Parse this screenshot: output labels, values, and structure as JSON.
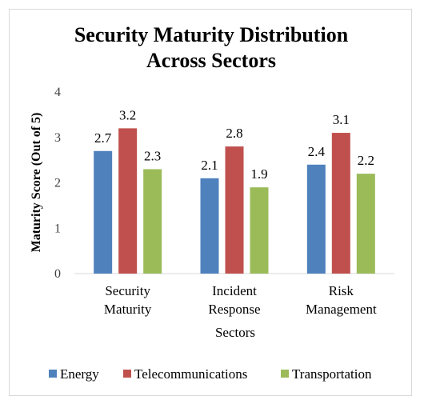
{
  "chart_data": {
    "type": "bar",
    "title_lines": [
      "Security Maturity Distribution",
      "Across Sectors"
    ],
    "xlabel": "Sectors",
    "ylabel": "Maturity Score (Out of 5)",
    "ylim": [
      0,
      4
    ],
    "yticks": [
      "0",
      "1",
      "2",
      "3",
      "4"
    ],
    "categories": [
      [
        "Security",
        "Maturity"
      ],
      [
        "Incident",
        "Response"
      ],
      [
        "Risk",
        "Management"
      ]
    ],
    "series": [
      {
        "name": "Energy",
        "color": "#4f81bd",
        "values": [
          2.7,
          2.1,
          2.4
        ],
        "labels": [
          "2.7",
          "2.1",
          "2.4"
        ]
      },
      {
        "name": "Telecommunications",
        "color": "#c0504d",
        "values": [
          3.2,
          2.8,
          3.1
        ],
        "labels": [
          "3.2",
          "2.8",
          "3.1"
        ]
      },
      {
        "name": "Transportation",
        "color": "#9bbb59",
        "values": [
          2.3,
          1.9,
          2.2
        ],
        "labels": [
          "2.3",
          "1.9",
          "2.2"
        ]
      }
    ],
    "grid": false,
    "legend_position": "bottom"
  }
}
